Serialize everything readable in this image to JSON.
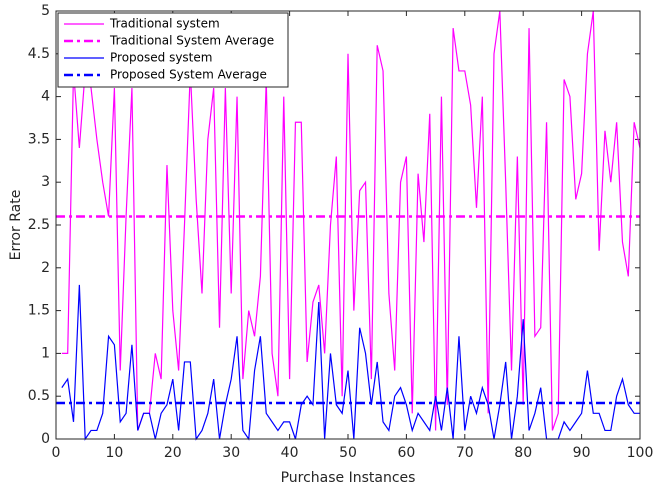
{
  "chart_data": {
    "type": "line",
    "xlabel": "Purchase Instances",
    "ylabel": "Error Rate",
    "xlim": [
      0,
      100
    ],
    "xticks": [
      0,
      10,
      20,
      30,
      40,
      50,
      60,
      70,
      80,
      90,
      100
    ],
    "ylim": [
      0,
      5
    ],
    "yticks": [
      0,
      0.5,
      1,
      1.5,
      2,
      2.5,
      3,
      3.5,
      4,
      4.5,
      5
    ],
    "legend": "top-left",
    "x": [
      1,
      2,
      3,
      4,
      5,
      6,
      7,
      8,
      9,
      10,
      11,
      12,
      13,
      14,
      15,
      16,
      17,
      18,
      19,
      20,
      21,
      22,
      23,
      24,
      25,
      26,
      27,
      28,
      29,
      30,
      31,
      32,
      33,
      34,
      35,
      36,
      37,
      38,
      39,
      40,
      41,
      42,
      43,
      44,
      45,
      46,
      47,
      48,
      49,
      50,
      51,
      52,
      53,
      54,
      55,
      56,
      57,
      58,
      59,
      60,
      61,
      62,
      63,
      64,
      65,
      66,
      67,
      68,
      69,
      70,
      71,
      72,
      73,
      74,
      75,
      76,
      77,
      78,
      79,
      80,
      81,
      82,
      83,
      84,
      85,
      86,
      87,
      88,
      89,
      90,
      91,
      92,
      93,
      94,
      95,
      96,
      97,
      98,
      99,
      100
    ],
    "series": [
      {
        "name": "Traditional system",
        "color": "#ff00ff",
        "style": "solid",
        "values": [
          1.0,
          1.0,
          4.3,
          3.4,
          4.3,
          4.1,
          3.5,
          3.0,
          2.6,
          4.1,
          0.8,
          2.6,
          4.1,
          0.1,
          0.3,
          0.3,
          1.0,
          0.7,
          3.2,
          1.5,
          0.8,
          2.5,
          4.3,
          2.8,
          1.7,
          3.5,
          4.1,
          1.3,
          4.1,
          1.7,
          4.0,
          0.7,
          1.5,
          1.2,
          1.9,
          4.2,
          1.0,
          0.5,
          4.0,
          0.7,
          3.7,
          3.7,
          0.9,
          1.6,
          1.8,
          1.0,
          2.5,
          3.3,
          0.5,
          4.5,
          1.5,
          2.9,
          3.0,
          0.7,
          4.6,
          4.3,
          1.7,
          0.8,
          3.0,
          3.3,
          0.3,
          3.1,
          2.3,
          3.8,
          0.1,
          4.0,
          0.4,
          4.8,
          4.3,
          4.3,
          3.9,
          2.7,
          4.0,
          0.3,
          4.5,
          5.0,
          3.0,
          0.8,
          3.3,
          0.4,
          4.8,
          1.2,
          1.3,
          3.7,
          0.1,
          0.3,
          4.2,
          4.0,
          2.8,
          3.1,
          4.5,
          5.0,
          2.2,
          3.6,
          3.0,
          3.7,
          2.3,
          1.9,
          3.7,
          3.4
        ]
      },
      {
        "name": "Traditional System Average",
        "color": "#ff00ff",
        "style": "dashdot",
        "value": 2.6
      },
      {
        "name": "Proposed system",
        "color": "#0000ff",
        "style": "solid",
        "values": [
          0.6,
          0.7,
          0.2,
          1.8,
          0.0,
          0.1,
          0.1,
          0.3,
          1.2,
          1.1,
          0.2,
          0.3,
          1.1,
          0.1,
          0.3,
          0.3,
          0.0,
          0.3,
          0.4,
          0.7,
          0.1,
          0.9,
          0.9,
          0.0,
          0.1,
          0.3,
          0.7,
          0.0,
          0.4,
          0.7,
          1.2,
          0.1,
          0.0,
          0.8,
          1.2,
          0.3,
          0.2,
          0.1,
          0.2,
          0.2,
          0.0,
          0.4,
          0.5,
          0.4,
          1.6,
          0.0,
          1.0,
          0.4,
          0.3,
          0.8,
          0.0,
          1.3,
          1.0,
          0.4,
          0.9,
          0.2,
          0.1,
          0.5,
          0.6,
          0.4,
          0.1,
          0.3,
          0.2,
          0.1,
          0.5,
          0.1,
          0.6,
          0.0,
          1.2,
          0.1,
          0.5,
          0.3,
          0.6,
          0.4,
          0.0,
          0.4,
          0.9,
          0.0,
          0.5,
          1.4,
          0.1,
          0.3,
          0.6,
          0.0,
          0.0,
          0.0,
          0.2,
          0.1,
          0.2,
          0.3,
          0.8,
          0.3,
          0.3,
          0.1,
          0.1,
          0.5,
          0.7,
          0.4,
          0.3,
          0.3
        ]
      },
      {
        "name": "Proposed System Average",
        "color": "#0000ff",
        "style": "dashdot",
        "value": 0.42
      }
    ]
  }
}
